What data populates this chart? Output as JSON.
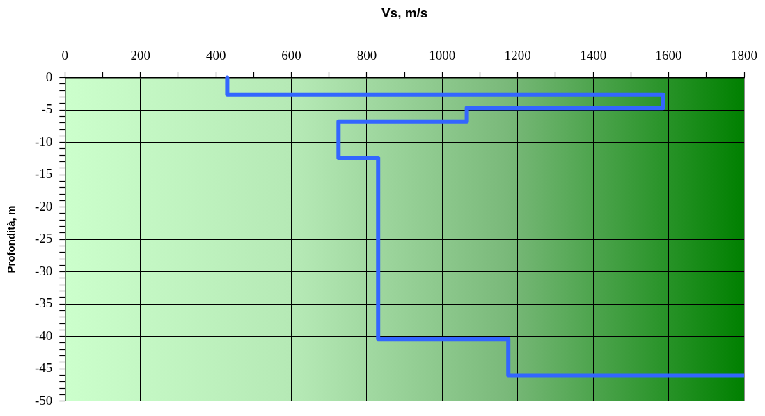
{
  "chart_data": {
    "type": "line",
    "xlabel": "Vs, m/s",
    "ylabel": "Profondità, m",
    "color": "#3366ff",
    "x": [
      430,
      430,
      1585,
      1585,
      1065,
      1065,
      725,
      725,
      830,
      830,
      1175,
      1175,
      1800
    ],
    "values": [
      0,
      -2.6,
      -2.6,
      -4.7,
      -4.7,
      -6.8,
      -6.8,
      -12.4,
      -12.4,
      -40.4,
      -40.4,
      -46.0,
      -46.0
    ],
    "xlim": [
      0,
      1800
    ],
    "xticks": [
      0,
      {
        "value": 100,
        "label": null
      },
      200,
      {
        "value": 300,
        "label": null
      },
      400,
      {
        "value": 500,
        "label": null
      },
      600,
      {
        "value": 700,
        "label": null
      },
      800,
      {
        "value": 900,
        "label": null
      },
      1000,
      {
        "value": 1100,
        "label": null
      },
      1200,
      {
        "value": 1300,
        "label": null
      },
      1400,
      {
        "value": 1500,
        "label": null
      },
      1600,
      {
        "value": 1700,
        "label": null
      },
      1800
    ],
    "ylim": [
      -50,
      0
    ],
    "yticks": [
      0,
      {
        "value": -1,
        "label": null
      },
      {
        "value": -2,
        "label": null
      },
      {
        "value": -3,
        "label": null
      },
      {
        "value": -4,
        "label": null
      },
      -5,
      {
        "value": -6,
        "label": null
      },
      {
        "value": -7,
        "label": null
      },
      {
        "value": -8,
        "label": null
      },
      {
        "value": -9,
        "label": null
      },
      -10,
      {
        "value": -11,
        "label": null
      },
      {
        "value": -12,
        "label": null
      },
      {
        "value": -13,
        "label": null
      },
      {
        "value": -14,
        "label": null
      },
      -15,
      {
        "value": -16,
        "label": null
      },
      {
        "value": -17,
        "label": null
      },
      {
        "value": -18,
        "label": null
      },
      {
        "value": -19,
        "label": null
      },
      -20,
      {
        "value": -21,
        "label": null
      },
      {
        "value": -22,
        "label": null
      },
      {
        "value": -23,
        "label": null
      },
      {
        "value": -24,
        "label": null
      },
      -25,
      {
        "value": -26,
        "label": null
      },
      {
        "value": -27,
        "label": null
      },
      {
        "value": -28,
        "label": null
      },
      {
        "value": -29,
        "label": null
      },
      -30,
      {
        "value": -31,
        "label": null
      },
      {
        "value": -32,
        "label": null
      },
      {
        "value": -33,
        "label": null
      },
      {
        "value": -34,
        "label": null
      },
      -35,
      {
        "value": -36,
        "label": null
      },
      {
        "value": -37,
        "label": null
      },
      {
        "value": -38,
        "label": null
      },
      {
        "value": -39,
        "label": null
      },
      -40,
      {
        "value": -41,
        "label": null
      },
      {
        "value": -42,
        "label": null
      },
      {
        "value": -43,
        "label": null
      },
      {
        "value": -44,
        "label": null
      },
      -45,
      {
        "value": -46,
        "label": null
      },
      {
        "value": -47,
        "label": null
      },
      {
        "value": -48,
        "label": null
      },
      {
        "value": -49,
        "label": null
      },
      -50
    ],
    "grid": true
  }
}
